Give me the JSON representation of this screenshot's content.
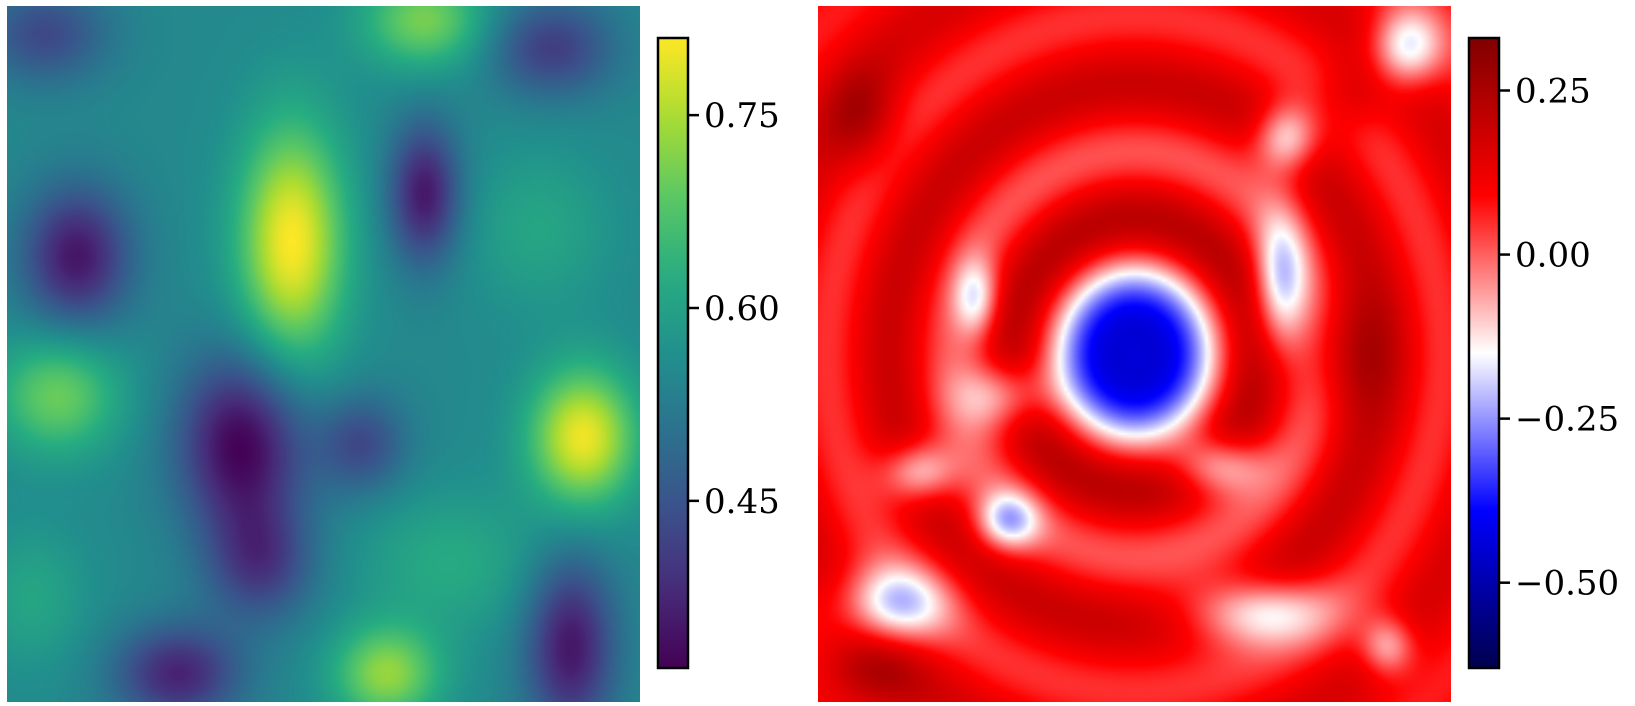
{
  "chart_data": [
    {
      "type": "heatmap",
      "title": "",
      "xlabel": "",
      "ylabel": "",
      "colormap": "viridis",
      "value_range": [
        0.32,
        0.81
      ],
      "colorbar": {
        "ticks": [
          0.45,
          0.6,
          0.75
        ],
        "tick_labels": [
          "0.45",
          "0.60",
          "0.75"
        ]
      },
      "field": {
        "base": 0.55,
        "blobs": [
          {
            "x": 0.45,
            "y": 0.34,
            "sx": 0.06,
            "sy": 0.12,
            "a": 0.26
          },
          {
            "x": 0.91,
            "y": 0.62,
            "sx": 0.06,
            "sy": 0.07,
            "a": 0.25
          },
          {
            "x": 0.08,
            "y": 0.56,
            "sx": 0.07,
            "sy": 0.06,
            "a": 0.15
          },
          {
            "x": 0.66,
            "y": 0.02,
            "sx": 0.07,
            "sy": 0.05,
            "a": 0.16
          },
          {
            "x": 0.6,
            "y": 0.96,
            "sx": 0.06,
            "sy": 0.05,
            "a": 0.18
          },
          {
            "x": 0.37,
            "y": 0.63,
            "sx": 0.07,
            "sy": 0.09,
            "a": -0.23
          },
          {
            "x": 0.56,
            "y": 0.63,
            "sx": 0.05,
            "sy": 0.05,
            "a": -0.12
          },
          {
            "x": 0.66,
            "y": 0.27,
            "sx": 0.04,
            "sy": 0.07,
            "a": -0.2
          },
          {
            "x": 0.11,
            "y": 0.36,
            "sx": 0.06,
            "sy": 0.07,
            "a": -0.2
          },
          {
            "x": 0.89,
            "y": 0.92,
            "sx": 0.05,
            "sy": 0.09,
            "a": -0.2
          },
          {
            "x": 0.27,
            "y": 0.96,
            "sx": 0.07,
            "sy": 0.05,
            "a": -0.18
          },
          {
            "x": 0.86,
            "y": 0.06,
            "sx": 0.07,
            "sy": 0.05,
            "a": -0.14
          },
          {
            "x": 0.06,
            "y": 0.04,
            "sx": 0.07,
            "sy": 0.05,
            "a": -0.12
          },
          {
            "x": 0.4,
            "y": 0.8,
            "sx": 0.06,
            "sy": 0.06,
            "a": -0.14
          },
          {
            "x": 0.84,
            "y": 0.32,
            "sx": 0.08,
            "sy": 0.08,
            "a": 0.06
          },
          {
            "x": 0.7,
            "y": 0.8,
            "sx": 0.1,
            "sy": 0.07,
            "a": 0.07
          },
          {
            "x": 0.04,
            "y": 0.85,
            "sx": 0.06,
            "sy": 0.07,
            "a": 0.06
          }
        ]
      }
    },
    {
      "type": "heatmap",
      "title": "",
      "xlabel": "",
      "ylabel": "",
      "colormap": "seismic",
      "value_range": [
        -0.63,
        0.33
      ],
      "colorbar": {
        "ticks": [
          -0.5,
          -0.25,
          0.0,
          0.25
        ],
        "tick_labels": [
          "−0.50",
          "−0.25",
          "0.00",
          "0.25"
        ]
      },
      "field": {
        "center": [
          0.5,
          0.5
        ],
        "core_depth": -0.72,
        "core_radius": 0.065,
        "ring_amplitude": 0.17,
        "ring_offset": -0.01,
        "ring_wavelength": 0.195,
        "ring_decay": 0.5,
        "blobs": [
          {
            "x": 0.93,
            "y": 0.06,
            "sx": 0.04,
            "sy": 0.04,
            "a": -0.3
          },
          {
            "x": 0.74,
            "y": 0.19,
            "sx": 0.035,
            "sy": 0.035,
            "a": -0.28
          },
          {
            "x": 0.73,
            "y": 0.4,
            "sx": 0.03,
            "sy": 0.07,
            "a": -0.28
          },
          {
            "x": 0.25,
            "y": 0.42,
            "sx": 0.025,
            "sy": 0.04,
            "a": -0.22
          },
          {
            "x": 0.29,
            "y": 0.56,
            "sx": 0.05,
            "sy": 0.035,
            "a": -0.22
          },
          {
            "x": 0.63,
            "y": 0.66,
            "sx": 0.05,
            "sy": 0.03,
            "a": -0.25
          },
          {
            "x": 0.16,
            "y": 0.67,
            "sx": 0.04,
            "sy": 0.03,
            "a": -0.25
          },
          {
            "x": 0.3,
            "y": 0.74,
            "sx": 0.035,
            "sy": 0.03,
            "a": -0.28
          },
          {
            "x": 0.12,
            "y": 0.86,
            "sx": 0.06,
            "sy": 0.04,
            "a": -0.3
          },
          {
            "x": 0.69,
            "y": 0.87,
            "sx": 0.08,
            "sy": 0.035,
            "a": -0.28
          },
          {
            "x": 0.9,
            "y": 0.92,
            "sx": 0.03,
            "sy": 0.03,
            "a": -0.22
          },
          {
            "x": 0.07,
            "y": 0.16,
            "sx": 0.04,
            "sy": 0.05,
            "a": 0.12
          },
          {
            "x": 0.84,
            "y": 0.5,
            "sx": 0.05,
            "sy": 0.06,
            "a": 0.1
          },
          {
            "x": 0.08,
            "y": 0.96,
            "sx": 0.06,
            "sy": 0.04,
            "a": 0.12
          },
          {
            "x": 0.84,
            "y": 0.13,
            "sx": 0.04,
            "sy": 0.04,
            "a": 0.08
          }
        ]
      }
    }
  ]
}
